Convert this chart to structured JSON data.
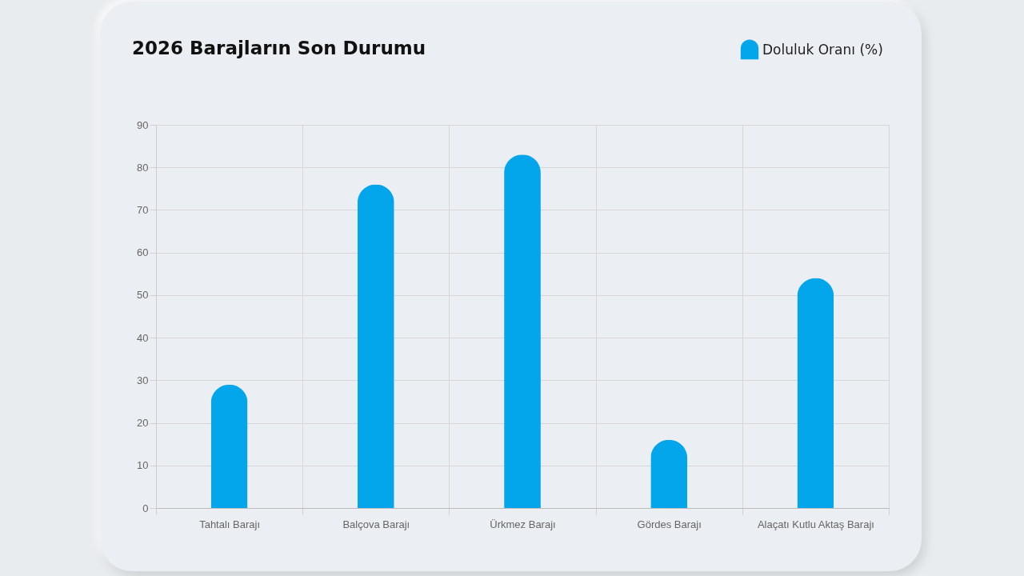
{
  "chart_data": {
    "type": "bar",
    "title": "2026 Barajların Son Durumu",
    "categories": [
      "Tahtalı Barajı",
      "Balçova Barajı",
      "Ürkmez Barajı",
      "Gördes Barajı",
      "Alaçatı Kutlu Aktaş Barajı"
    ],
    "series": [
      {
        "name": "Doluluk Oranı (%)",
        "color": "#03a5eb",
        "values": [
          29,
          76,
          83,
          16,
          54
        ]
      }
    ],
    "ylim": [
      0,
      90
    ],
    "yticks": [
      0,
      10,
      20,
      30,
      40,
      50,
      60,
      70,
      80,
      90
    ],
    "grid": true,
    "legend": "top right"
  }
}
